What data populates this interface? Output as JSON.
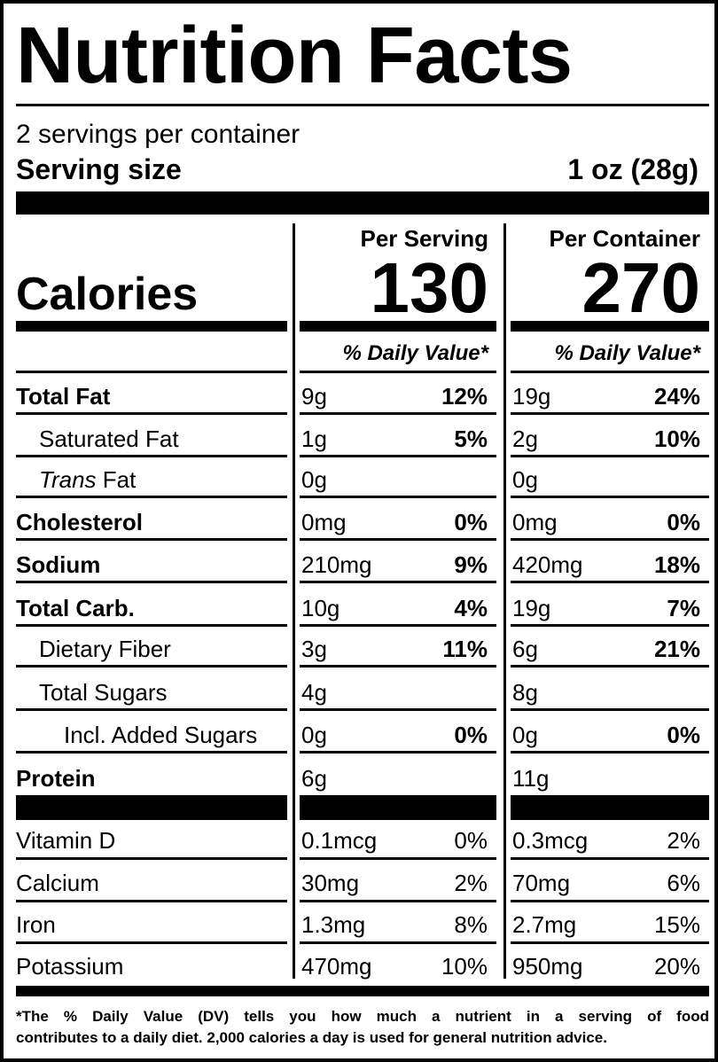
{
  "title": "Nutrition Facts",
  "servings_per_container": "2 servings per container",
  "serving_size_label": "Serving size",
  "serving_size_value": "1 oz (28g)",
  "per_serving_label": "Per Serving",
  "per_container_label": "Per Container",
  "calories_label": "Calories",
  "calories_serving": "130",
  "calories_container": "270",
  "daily_value_label": "% Daily Value*",
  "nutrients": [
    {
      "label": "Total Fat",
      "s_amt": "9g",
      "s_pct": "12%",
      "c_amt": "19g",
      "c_pct": "24%"
    },
    {
      "label": "Saturated Fat",
      "s_amt": "1g",
      "s_pct": "5%",
      "c_amt": "2g",
      "c_pct": "10%"
    },
    {
      "label_italic": "Trans",
      "label_rest": " Fat",
      "s_amt": "0g",
      "s_pct": "",
      "c_amt": "0g",
      "c_pct": ""
    },
    {
      "label": "Cholesterol",
      "s_amt": "0mg",
      "s_pct": "0%",
      "c_amt": "0mg",
      "c_pct": "0%"
    },
    {
      "label": "Sodium",
      "s_amt": "210mg",
      "s_pct": "9%",
      "c_amt": "420mg",
      "c_pct": "18%"
    },
    {
      "label": "Total Carb.",
      "s_amt": "10g",
      "s_pct": "4%",
      "c_amt": "19g",
      "c_pct": "7%"
    },
    {
      "label": "Dietary Fiber",
      "s_amt": "3g",
      "s_pct": "11%",
      "c_amt": "6g",
      "c_pct": "21%"
    },
    {
      "label": "Total Sugars",
      "s_amt": "4g",
      "s_pct": "",
      "c_amt": "8g",
      "c_pct": ""
    },
    {
      "label": "Incl. Added Sugars",
      "s_amt": "0g",
      "s_pct": "0%",
      "c_amt": "0g",
      "c_pct": "0%"
    },
    {
      "label": "Protein",
      "s_amt": "6g",
      "s_pct": "",
      "c_amt": "11g",
      "c_pct": ""
    }
  ],
  "vitamins": [
    {
      "label": "Vitamin D",
      "s_amt": "0.1mcg",
      "s_pct": "0%",
      "c_amt": "0.3mcg",
      "c_pct": "2%"
    },
    {
      "label": "Calcium",
      "s_amt": "30mg",
      "s_pct": "2%",
      "c_amt": "70mg",
      "c_pct": "6%"
    },
    {
      "label": "Iron",
      "s_amt": "1.3mg",
      "s_pct": "8%",
      "c_amt": "2.7mg",
      "c_pct": "15%"
    },
    {
      "label": "Potassium",
      "s_amt": "470mg",
      "s_pct": "10%",
      "c_amt": "950mg",
      "c_pct": "20%"
    }
  ],
  "footnote_line1": "*The % Daily Value (DV) tells you how much a nutrient in a serving of food",
  "footnote_line2": "contributes to a daily diet. 2,000 calories a day is used for general nutrition advice."
}
